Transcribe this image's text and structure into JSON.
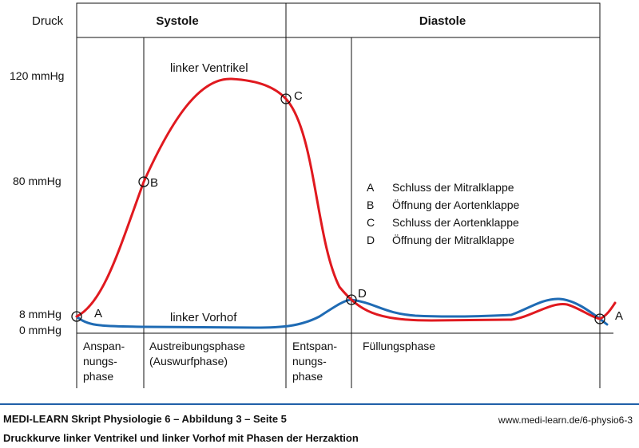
{
  "header": {
    "ylabel": "Druck",
    "systole": "Systole",
    "diastole": "Diastole"
  },
  "y_ticks": [
    "120 mmHg",
    "80 mmHg",
    "8 mmHg",
    "0 mmHg"
  ],
  "curves": {
    "ventricle_label": "linker Ventrikel",
    "atrium_label": "linker Vorhof",
    "ventricle_color": "#e0191f",
    "atrium_color": "#1f6bb4"
  },
  "markers": {
    "a_start": "A",
    "b": "B",
    "c": "C",
    "d": "D",
    "a_end": "A"
  },
  "legend": [
    {
      "key": "A",
      "text": "Schluss der Mitralklappe"
    },
    {
      "key": "B",
      "text": "Öffnung der Aortenklappe"
    },
    {
      "key": "C",
      "text": "Schluss der Aortenklappe"
    },
    {
      "key": "D",
      "text": "Öffnung der Mitralklappe"
    }
  ],
  "phases": {
    "anspannung": [
      "Anspan-",
      "nungs-",
      "phase"
    ],
    "austreibung": [
      "Austreibungsphase",
      "(Auswurfphase)"
    ],
    "entspannung": [
      "Entspan-",
      "nungs-",
      "phase"
    ],
    "fuellung": [
      "Füllungsphase"
    ]
  },
  "footer": {
    "title": "MEDI-LEARN Skript Physiologie 6 – Abbildung 3 – Seite 5",
    "url": "www.medi-learn.de/6-physio6-3",
    "caption": "Druckkurve linker Ventrikel und linker Vorhof mit Phasen der Herzaktion"
  }
}
